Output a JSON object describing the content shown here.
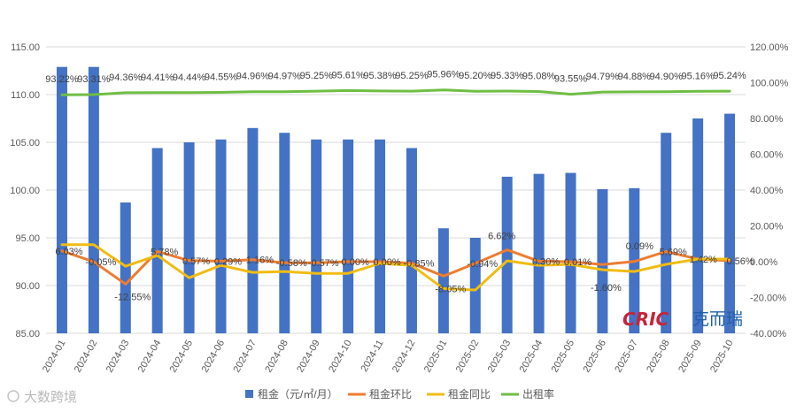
{
  "chart_data": {
    "type": "bar",
    "title": "",
    "categories": [
      "2024-01",
      "2024-02",
      "2024-03",
      "2024-04",
      "2024-05",
      "2024-06",
      "2024-07",
      "2024-08",
      "2024-09",
      "2024-10",
      "2024-11",
      "2024-12",
      "2025-01",
      "2025-02",
      "2025-03",
      "2025-04",
      "2025-05",
      "2025-06",
      "2025-07",
      "2025-08",
      "2025-09",
      "2025-10"
    ],
    "y_left": {
      "min": 85,
      "max": 115,
      "step": 5,
      "ticks": [
        "85.00",
        "90.00",
        "95.00",
        "100.00",
        "105.00",
        "110.00",
        "115.00"
      ]
    },
    "y_right": {
      "min": -40,
      "max": 120,
      "step": 20,
      "ticks": [
        "-40.00%",
        "-20.00%",
        "0.00%",
        "20.00%",
        "40.00%",
        "60.00%",
        "80.00%",
        "100.00%",
        "120.00%"
      ]
    },
    "grid": true,
    "legend_position": "bottom",
    "series": [
      {
        "name": "租金（元/㎡/月）",
        "kind": "bar",
        "axis": "left",
        "color": "#4472c4",
        "values": [
          112.9,
          112.9,
          98.7,
          104.4,
          105.0,
          105.3,
          106.5,
          106.0,
          105.3,
          105.3,
          105.3,
          104.4,
          96.0,
          95.0,
          101.4,
          101.7,
          101.8,
          100.1,
          100.2,
          106.0,
          107.5,
          108.0
        ]
      },
      {
        "name": "租金环比",
        "kind": "line",
        "axis": "right",
        "color": "#ed7d31",
        "values": [
          6.03,
          -0.05,
          -12.55,
          5.78,
          0.57,
          0.29,
          1.16,
          -0.58,
          -0.57,
          0.0,
          0.0,
          -0.85,
          -8.05,
          -0.94,
          6.62,
          0.3,
          0.01,
          -1.6,
          0.09,
          5.69,
          1.42,
          0.56
        ],
        "labels": [
          "6.03%",
          "-0.05%",
          "-12.55%",
          "5.78%",
          "0.57%",
          "0.29%",
          "1.16%",
          "-0.58%",
          "-0.57%",
          "0.00%",
          "0.00%",
          "-0.85%",
          "-8.05%",
          "-0.94%",
          "6.62%",
          "0.30%",
          "0.01%",
          "-1.60%",
          "0.09%",
          "5.69%",
          "1.42%",
          "0.56%"
        ]
      },
      {
        "name": "租金同比",
        "kind": "line",
        "axis": "right",
        "color": "#f0bc13",
        "values": [
          9.5,
          9.5,
          -2.5,
          3.5,
          -9.0,
          -2.0,
          -6.0,
          -5.5,
          -6.5,
          -6.5,
          -1.0,
          -2.0,
          -15.0,
          -15.8,
          0.5,
          -2.0,
          -1.5,
          -4.5,
          -5.5,
          -1.5,
          1.5,
          1.5
        ]
      },
      {
        "name": "出租率",
        "kind": "line",
        "axis": "right",
        "color": "#6fbe44",
        "values": [
          93.22,
          93.31,
          94.36,
          94.41,
          94.44,
          94.55,
          94.96,
          94.97,
          95.25,
          95.61,
          95.38,
          95.25,
          95.96,
          95.2,
          95.33,
          95.08,
          93.55,
          94.79,
          94.88,
          94.9,
          95.16,
          95.24
        ],
        "labels": [
          "93.22%",
          "93.31%",
          "94.36%",
          "94.41%",
          "94.44%",
          "94.55%",
          "94.96%",
          "94.97%",
          "95.25%",
          "95.61%",
          "95.38%",
          "95.25%",
          "95.96%",
          "95.20%",
          "95.33%",
          "95.08%",
          "93.55%",
          "94.79%",
          "94.88%",
          "94.90%",
          "95.16%",
          "95.24%"
        ]
      }
    ]
  },
  "watermarks": {
    "brand_latin": "CRIC",
    "brand_cn": "克而瑞",
    "source": "大数跨境"
  }
}
